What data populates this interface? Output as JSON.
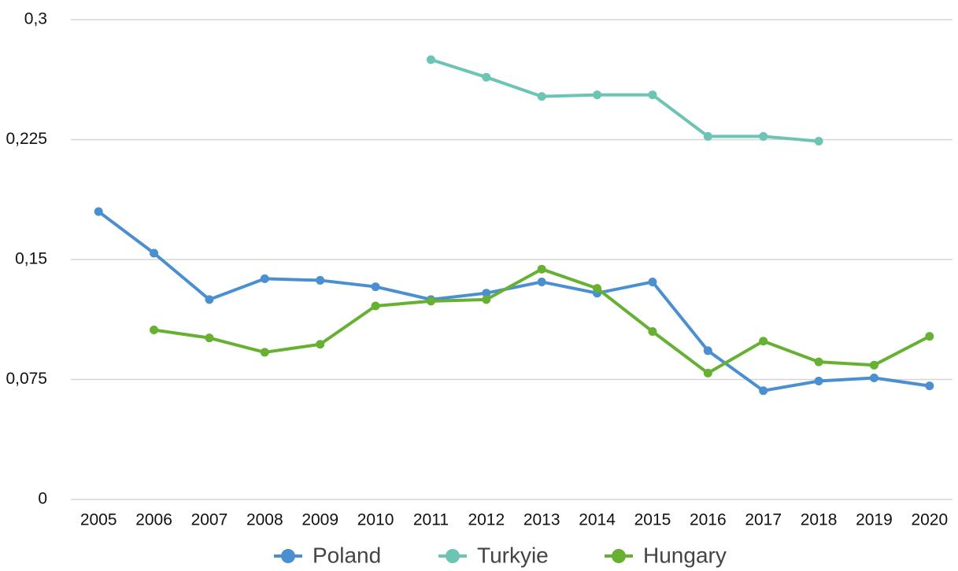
{
  "chart_data": {
    "type": "line",
    "categories": [
      "2005",
      "2006",
      "2007",
      "2008",
      "2009",
      "2010",
      "2011",
      "2012",
      "2013",
      "2014",
      "2015",
      "2016",
      "2017",
      "2018",
      "2019",
      "2020"
    ],
    "series": [
      {
        "name": "Poland",
        "color": "#4a90d0",
        "values": [
          0.18,
          0.154,
          0.125,
          0.138,
          0.137,
          0.133,
          0.125,
          0.129,
          0.136,
          0.129,
          0.136,
          0.093,
          0.068,
          0.074,
          0.076,
          0.071
        ]
      },
      {
        "name": "Turkyie",
        "color": "#6cc4b4",
        "values": [
          null,
          null,
          null,
          null,
          null,
          null,
          0.275,
          0.264,
          0.252,
          0.253,
          0.253,
          0.227,
          0.227,
          0.224,
          null,
          null
        ]
      },
      {
        "name": "Hungary",
        "color": "#66b032",
        "values": [
          null,
          0.106,
          0.101,
          0.092,
          0.097,
          0.121,
          0.124,
          0.125,
          0.144,
          0.132,
          0.105,
          0.079,
          0.099,
          0.086,
          0.084,
          0.102
        ]
      }
    ],
    "ylim": [
      0,
      0.3
    ],
    "yticks": [
      0,
      {
        "value": 0.075,
        "label": "0,075"
      },
      {
        "value": 0.15,
        "label": "0,15"
      },
      {
        "value": 0.225,
        "label": "0,225"
      },
      {
        "value": 0.3,
        "label": "0,3"
      }
    ],
    "grid": true,
    "legend": "bottom"
  }
}
